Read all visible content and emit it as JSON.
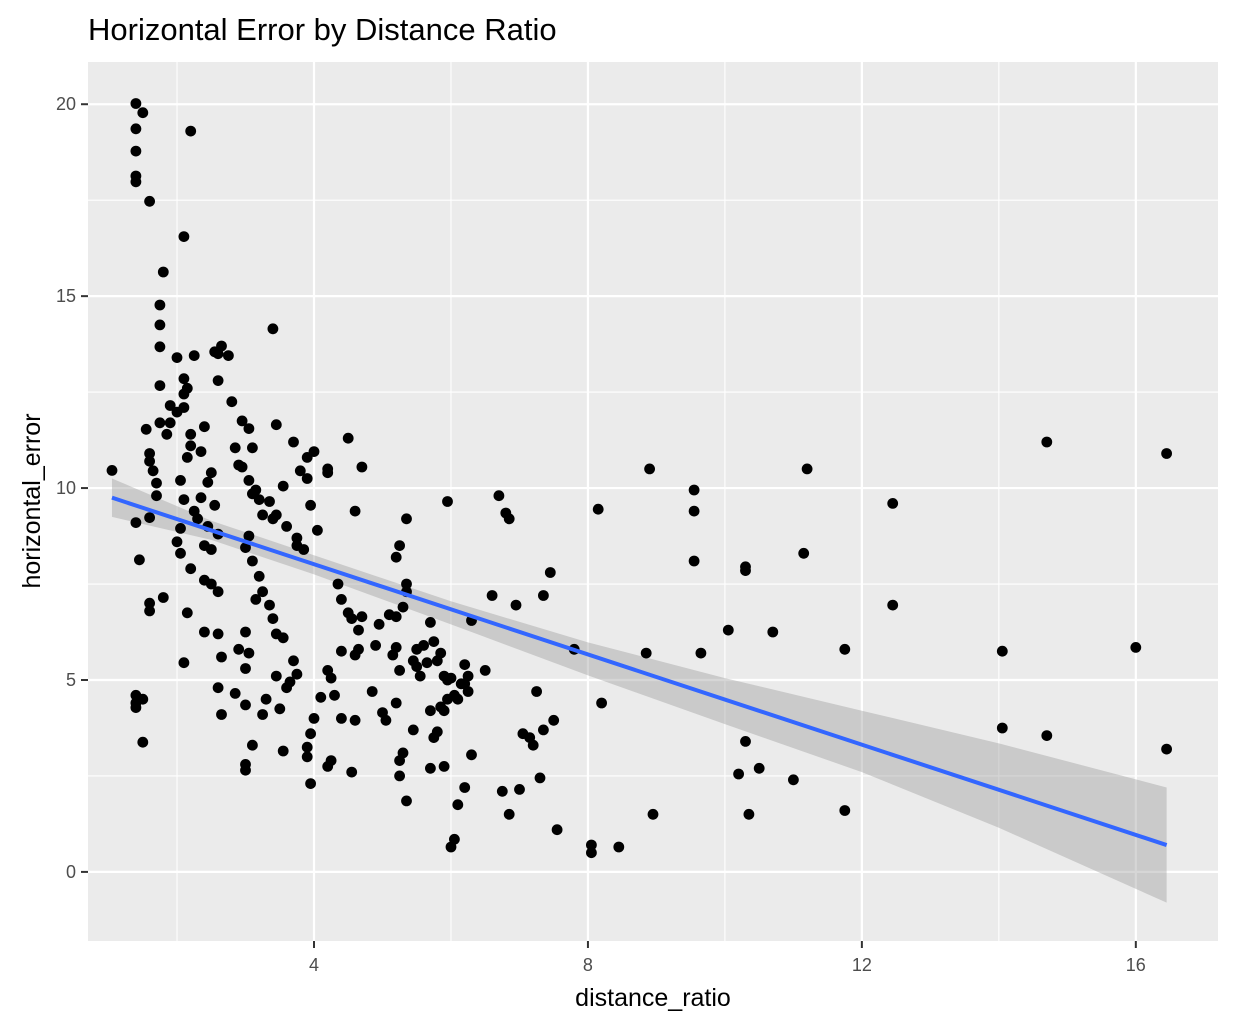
{
  "chart_data": {
    "type": "scatter",
    "title": "Horizontal Error by Distance Ratio",
    "xlabel": "distance_ratio",
    "ylabel": "horizontal_error",
    "xlim": [
      0.7,
      17.2
    ],
    "ylim": [
      -1.8,
      21.1
    ],
    "x_ticks": [
      4,
      8,
      12,
      16
    ],
    "y_ticks": [
      0,
      5,
      10,
      15,
      20
    ],
    "x_minor": [
      2,
      6,
      10,
      14
    ],
    "y_minor": [
      2.5,
      7.5,
      12.5,
      17.5
    ],
    "grid": true,
    "legend": "none",
    "colors": {
      "panel": "#ebebeb",
      "grid": "#ffffff",
      "point": "#000000",
      "fit_line": "#3366ff",
      "ribbon": "#999999"
    },
    "points": [
      [
        1.05,
        10.46
      ],
      [
        1.4,
        20.02
      ],
      [
        1.4,
        19.36
      ],
      [
        1.4,
        18.78
      ],
      [
        1.4,
        18.13
      ],
      [
        1.4,
        17.98
      ],
      [
        1.5,
        19.78
      ],
      [
        1.6,
        17.47
      ],
      [
        1.4,
        4.6
      ],
      [
        1.4,
        4.28
      ],
      [
        1.4,
        4.4
      ],
      [
        1.5,
        4.5
      ],
      [
        1.5,
        3.38
      ],
      [
        1.45,
        8.13
      ],
      [
        1.4,
        9.1
      ],
      [
        1.8,
        15.63
      ],
      [
        1.75,
        14.77
      ],
      [
        1.75,
        14.25
      ],
      [
        1.75,
        13.68
      ],
      [
        1.75,
        12.67
      ],
      [
        1.55,
        11.53
      ],
      [
        1.6,
        10.9
      ],
      [
        1.6,
        10.7
      ],
      [
        1.65,
        10.45
      ],
      [
        1.7,
        10.13
      ],
      [
        1.7,
        9.8
      ],
      [
        1.6,
        9.23
      ],
      [
        1.6,
        7.0
      ],
      [
        1.6,
        6.8
      ],
      [
        1.8,
        7.15
      ],
      [
        1.75,
        11.7
      ],
      [
        1.85,
        11.4
      ],
      [
        1.9,
        11.7
      ],
      [
        1.9,
        12.15
      ],
      [
        2.0,
        11.98
      ],
      [
        2.1,
        12.85
      ],
      [
        2.1,
        12.45
      ],
      [
        2.15,
        12.6
      ],
      [
        2.1,
        12.1
      ],
      [
        2.2,
        11.4
      ],
      [
        2.2,
        11.1
      ],
      [
        2.15,
        10.8
      ],
      [
        2.05,
        10.2
      ],
      [
        2.1,
        9.7
      ],
      [
        2.25,
        9.4
      ],
      [
        2.3,
        9.2
      ],
      [
        2.05,
        8.95
      ],
      [
        2.0,
        8.6
      ],
      [
        2.05,
        8.3
      ],
      [
        2.2,
        7.9
      ],
      [
        2.15,
        6.75
      ],
      [
        2.1,
        5.45
      ],
      [
        2.0,
        13.4
      ],
      [
        2.25,
        13.45
      ],
      [
        2.1,
        16.55
      ],
      [
        2.2,
        19.3
      ],
      [
        2.4,
        11.6
      ],
      [
        2.35,
        10.95
      ],
      [
        2.5,
        10.4
      ],
      [
        2.45,
        10.15
      ],
      [
        2.35,
        9.75
      ],
      [
        2.55,
        9.55
      ],
      [
        2.45,
        9.0
      ],
      [
        2.6,
        8.8
      ],
      [
        2.4,
        8.5
      ],
      [
        2.5,
        8.4
      ],
      [
        2.4,
        7.6
      ],
      [
        2.5,
        7.5
      ],
      [
        2.6,
        7.3
      ],
      [
        2.6,
        6.2
      ],
      [
        2.4,
        6.25
      ],
      [
        2.65,
        5.6
      ],
      [
        2.6,
        4.8
      ],
      [
        2.65,
        4.1
      ],
      [
        2.55,
        13.55
      ],
      [
        2.65,
        13.7
      ],
      [
        2.6,
        13.5
      ],
      [
        2.75,
        13.45
      ],
      [
        2.6,
        12.8
      ],
      [
        2.8,
        12.25
      ],
      [
        2.85,
        11.05
      ],
      [
        2.95,
        11.75
      ],
      [
        3.05,
        11.55
      ],
      [
        3.1,
        11.05
      ],
      [
        2.95,
        10.55
      ],
      [
        2.9,
        10.6
      ],
      [
        3.05,
        10.2
      ],
      [
        3.1,
        9.85
      ],
      [
        3.15,
        9.95
      ],
      [
        3.2,
        9.7
      ],
      [
        3.25,
        9.3
      ],
      [
        3.35,
        9.65
      ],
      [
        3.4,
        9.2
      ],
      [
        3.45,
        9.3
      ],
      [
        3.05,
        8.75
      ],
      [
        3.0,
        8.45
      ],
      [
        3.1,
        8.1
      ],
      [
        3.2,
        7.7
      ],
      [
        3.25,
        7.3
      ],
      [
        3.15,
        7.1
      ],
      [
        3.35,
        6.95
      ],
      [
        3.4,
        6.6
      ],
      [
        3.45,
        6.2
      ],
      [
        3.55,
        6.1
      ],
      [
        3.0,
        6.25
      ],
      [
        2.9,
        5.8
      ],
      [
        3.0,
        5.3
      ],
      [
        3.05,
        5.7
      ],
      [
        2.85,
        4.65
      ],
      [
        3.0,
        4.35
      ],
      [
        3.1,
        3.3
      ],
      [
        3.0,
        2.8
      ],
      [
        3.0,
        2.65
      ],
      [
        3.25,
        4.1
      ],
      [
        3.3,
        4.5
      ],
      [
        3.45,
        5.1
      ],
      [
        3.5,
        4.25
      ],
      [
        3.55,
        3.15
      ],
      [
        3.6,
        4.8
      ],
      [
        3.7,
        5.5
      ],
      [
        3.75,
        5.15
      ],
      [
        3.65,
        4.95
      ],
      [
        3.4,
        14.15
      ],
      [
        3.45,
        11.65
      ],
      [
        3.7,
        11.2
      ],
      [
        3.9,
        10.8
      ],
      [
        4.0,
        10.95
      ],
      [
        4.2,
        10.4
      ],
      [
        4.2,
        10.5
      ],
      [
        4.5,
        11.3
      ],
      [
        4.6,
        9.4
      ],
      [
        4.7,
        10.55
      ],
      [
        3.8,
        10.45
      ],
      [
        3.9,
        10.25
      ],
      [
        3.55,
        10.05
      ],
      [
        3.6,
        9.0
      ],
      [
        3.75,
        8.5
      ],
      [
        3.75,
        8.7
      ],
      [
        3.85,
        8.4
      ],
      [
        3.95,
        9.55
      ],
      [
        4.05,
        8.9
      ],
      [
        4.35,
        7.5
      ],
      [
        4.4,
        7.1
      ],
      [
        4.5,
        6.75
      ],
      [
        4.55,
        6.6
      ],
      [
        4.7,
        6.65
      ],
      [
        4.65,
        6.3
      ],
      [
        4.6,
        5.65
      ],
      [
        4.65,
        5.8
      ],
      [
        4.4,
        5.75
      ],
      [
        4.2,
        5.25
      ],
      [
        4.25,
        5.05
      ],
      [
        4.3,
        4.6
      ],
      [
        4.1,
        4.55
      ],
      [
        4.0,
        4.0
      ],
      [
        3.95,
        3.6
      ],
      [
        3.9,
        3.25
      ],
      [
        3.9,
        3.0
      ],
      [
        3.95,
        2.3
      ],
      [
        4.2,
        2.75
      ],
      [
        4.25,
        2.9
      ],
      [
        4.6,
        3.95
      ],
      [
        4.4,
        4.0
      ],
      [
        4.55,
        2.6
      ],
      [
        4.85,
        4.7
      ],
      [
        4.9,
        5.9
      ],
      [
        4.95,
        6.45
      ],
      [
        5.0,
        4.15
      ],
      [
        5.05,
        3.95
      ],
      [
        5.1,
        6.7
      ],
      [
        5.2,
        6.65
      ],
      [
        5.15,
        5.65
      ],
      [
        5.2,
        5.85
      ],
      [
        5.25,
        5.25
      ],
      [
        5.2,
        4.4
      ],
      [
        5.25,
        2.9
      ],
      [
        5.25,
        2.5
      ],
      [
        5.3,
        3.1
      ],
      [
        5.35,
        1.85
      ],
      [
        5.45,
        3.7
      ],
      [
        5.2,
        8.2
      ],
      [
        5.25,
        8.5
      ],
      [
        5.35,
        9.2
      ],
      [
        5.35,
        7.5
      ],
      [
        5.35,
        7.3
      ],
      [
        5.3,
        6.9
      ],
      [
        5.45,
        5.5
      ],
      [
        5.5,
        5.35
      ],
      [
        5.5,
        5.8
      ],
      [
        5.55,
        5.1
      ],
      [
        5.6,
        5.9
      ],
      [
        5.65,
        5.45
      ],
      [
        5.7,
        4.2
      ],
      [
        5.75,
        3.5
      ],
      [
        5.8,
        3.65
      ],
      [
        5.85,
        4.3
      ],
      [
        5.9,
        4.2
      ],
      [
        5.95,
        4.5
      ],
      [
        5.7,
        6.5
      ],
      [
        5.75,
        6.0
      ],
      [
        5.8,
        5.5
      ],
      [
        5.85,
        5.7
      ],
      [
        5.9,
        5.1
      ],
      [
        5.95,
        5.0
      ],
      [
        6.0,
        5.05
      ],
      [
        6.05,
        4.6
      ],
      [
        6.1,
        4.5
      ],
      [
        6.15,
        4.9
      ],
      [
        6.2,
        4.9
      ],
      [
        6.25,
        4.7
      ],
      [
        6.2,
        5.4
      ],
      [
        6.25,
        5.1
      ],
      [
        6.3,
        6.55
      ],
      [
        6.3,
        3.05
      ],
      [
        6.2,
        2.2
      ],
      [
        6.1,
        1.75
      ],
      [
        6.05,
        0.85
      ],
      [
        6.0,
        0.65
      ],
      [
        5.7,
        2.7
      ],
      [
        5.9,
        2.75
      ],
      [
        5.95,
        9.65
      ],
      [
        6.5,
        5.25
      ],
      [
        6.6,
        7.2
      ],
      [
        6.7,
        9.8
      ],
      [
        6.8,
        9.35
      ],
      [
        6.85,
        9.2
      ],
      [
        6.95,
        6.95
      ],
      [
        6.75,
        2.1
      ],
      [
        6.85,
        1.5
      ],
      [
        7.0,
        2.15
      ],
      [
        7.05,
        3.6
      ],
      [
        7.15,
        3.5
      ],
      [
        7.2,
        3.3
      ],
      [
        7.25,
        4.7
      ],
      [
        7.3,
        2.45
      ],
      [
        7.35,
        3.7
      ],
      [
        7.35,
        7.2
      ],
      [
        7.45,
        7.8
      ],
      [
        7.5,
        3.95
      ],
      [
        7.55,
        1.1
      ],
      [
        7.8,
        5.8
      ],
      [
        8.05,
        0.7
      ],
      [
        8.05,
        0.5
      ],
      [
        8.15,
        9.45
      ],
      [
        8.2,
        4.4
      ],
      [
        8.45,
        0.65
      ],
      [
        8.85,
        5.7
      ],
      [
        8.9,
        10.5
      ],
      [
        8.95,
        1.5
      ],
      [
        9.55,
        9.95
      ],
      [
        9.55,
        9.4
      ],
      [
        9.55,
        8.1
      ],
      [
        9.65,
        5.7
      ],
      [
        10.05,
        6.3
      ],
      [
        10.2,
        2.55
      ],
      [
        10.3,
        7.95
      ],
      [
        10.3,
        7.85
      ],
      [
        10.3,
        3.4
      ],
      [
        10.35,
        1.5
      ],
      [
        10.5,
        2.7
      ],
      [
        10.7,
        6.25
      ],
      [
        11.0,
        2.4
      ],
      [
        11.15,
        8.3
      ],
      [
        11.2,
        10.5
      ],
      [
        11.75,
        5.8
      ],
      [
        11.75,
        1.6
      ],
      [
        12.45,
        9.6
      ],
      [
        12.45,
        6.95
      ],
      [
        14.05,
        5.75
      ],
      [
        14.05,
        3.75
      ],
      [
        14.7,
        11.2
      ],
      [
        14.7,
        3.55
      ],
      [
        16.0,
        5.85
      ],
      [
        16.45,
        10.9
      ],
      [
        16.45,
        3.2
      ]
    ],
    "fit": {
      "x": [
        1.05,
        16.45
      ],
      "y": [
        9.75,
        0.7
      ]
    },
    "ribbon": {
      "x": [
        1.05,
        2.5,
        4.0,
        6.0,
        8.0,
        10.0,
        12.0,
        14.0,
        16.45
      ],
      "upper": [
        10.25,
        9.15,
        8.25,
        7.05,
        5.98,
        5.05,
        4.2,
        3.35,
        2.2
      ],
      "lower": [
        9.25,
        8.65,
        7.75,
        6.45,
        5.12,
        3.85,
        2.6,
        1.15,
        -0.8
      ]
    }
  }
}
